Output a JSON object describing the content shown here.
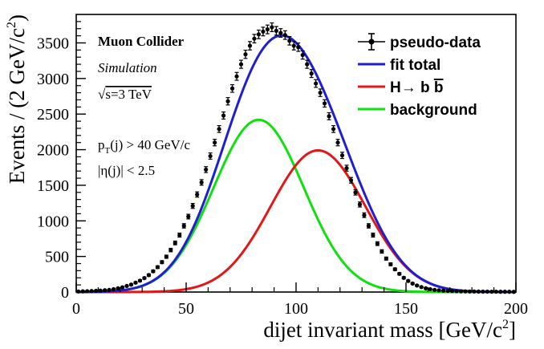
{
  "chart_data": {
    "type": "line",
    "xlabel": "dijet invariant mass [GeV/c",
    "xlabel_sup": "2",
    "xlabel_close": "]",
    "ylabel": "Events / (2 GeV/c",
    "ylabel_sup": "2",
    "ylabel_close": ")",
    "xlim": [
      0,
      200
    ],
    "ylim": [
      0,
      3900
    ],
    "x_ticks": [
      0,
      50,
      100,
      150,
      200
    ],
    "x_tick_labels": [
      "0",
      "50",
      "100",
      "150",
      "200"
    ],
    "y_ticks": [
      0,
      500,
      1000,
      1500,
      2000,
      2500,
      3000,
      3500
    ],
    "y_tick_labels": [
      "0",
      "500",
      "1000",
      "1500",
      "2000",
      "2500",
      "3000",
      "3500"
    ],
    "grid": false,
    "annotations": {
      "experiment": "Muon Collider",
      "simulation": "Simulation",
      "energy_sqrt": "√",
      "energy_rest": "s=3 TeV",
      "cut_pt_p": "p",
      "cut_pt_sub": "T",
      "cut_pt_rest": "(j) > 40 GeV/c",
      "cut_eta": "|η(j)| < 2.5"
    },
    "legend": {
      "position": "top-right",
      "entries": [
        {
          "label": "pseudo-data",
          "style": "points",
          "color": "#000000"
        },
        {
          "label": "fit total",
          "style": "line",
          "color": "#1f1fd0"
        },
        {
          "label_pre": "H→ b ",
          "label_bar": "b",
          "style": "line",
          "color": "#e01818"
        },
        {
          "label": "background",
          "style": "line",
          "color": "#10e010"
        }
      ]
    },
    "series": [
      {
        "name": "background",
        "kind": "gaussian",
        "color": "#10e010",
        "amplitude": 2420,
        "mean": 83,
        "sigma": 20.5
      },
      {
        "name": "H→ bb̄",
        "kind": "gaussian",
        "color": "#e01818",
        "amplitude": 1990,
        "mean": 110,
        "sigma": 21.5
      },
      {
        "name": "fit total",
        "kind": "sum",
        "color": "#1f1fd0"
      },
      {
        "name": "pseudo-data",
        "kind": "points",
        "color": "#000000",
        "x": [
          1,
          3,
          5,
          7,
          9,
          11,
          13,
          15,
          17,
          19,
          21,
          23,
          25,
          27,
          29,
          31,
          33,
          35,
          37,
          39,
          41,
          43,
          45,
          47,
          49,
          51,
          53,
          55,
          57,
          59,
          61,
          63,
          65,
          67,
          69,
          71,
          73,
          75,
          77,
          79,
          81,
          83,
          85,
          87,
          89,
          91,
          93,
          95,
          97,
          99,
          101,
          103,
          105,
          107,
          109,
          111,
          113,
          115,
          117,
          119,
          121,
          123,
          125,
          127,
          129,
          131,
          133,
          135,
          137,
          139,
          141,
          143,
          145,
          147,
          149,
          151,
          153,
          155,
          157,
          159,
          161,
          163,
          165,
          167,
          169,
          171,
          173,
          175,
          177,
          179,
          181,
          183,
          185,
          187,
          189,
          191,
          193,
          195,
          197,
          199
        ],
        "y": [
          8,
          10,
          12,
          14,
          17,
          20,
          26,
          30,
          40,
          52,
          66,
          86,
          104,
          132,
          160,
          196,
          238,
          292,
          350,
          420,
          496,
          590,
          690,
          800,
          930,
          1060,
          1210,
          1370,
          1540,
          1720,
          1910,
          2100,
          2290,
          2480,
          2680,
          2860,
          3030,
          3200,
          3340,
          3460,
          3560,
          3620,
          3660,
          3690,
          3720,
          3670,
          3640,
          3610,
          3530,
          3460,
          3440,
          3330,
          3200,
          3070,
          2930,
          2800,
          2650,
          2470,
          2290,
          2100,
          1920,
          1740,
          1570,
          1400,
          1230,
          1080,
          930,
          800,
          680,
          570,
          470,
          390,
          320,
          256,
          200,
          156,
          120,
          92,
          70,
          52,
          40,
          30,
          24,
          20,
          16,
          14,
          12,
          10,
          9,
          8,
          8,
          7,
          6,
          6,
          5,
          5,
          4,
          4,
          4,
          3
        ]
      }
    ]
  }
}
